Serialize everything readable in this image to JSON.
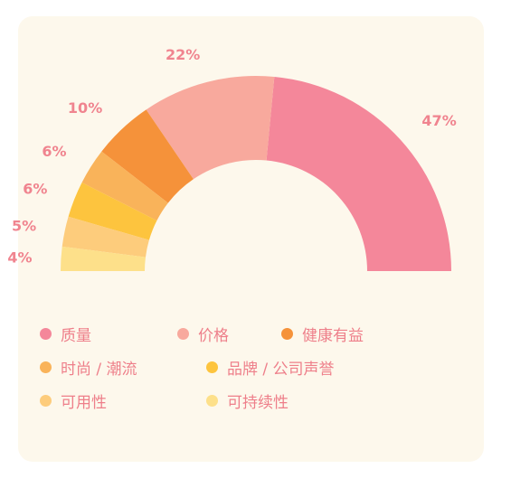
{
  "chart_data": {
    "type": "pie",
    "subtype": "semi-donut",
    "title": "",
    "categories": [
      "质量",
      "价格",
      "健康有益",
      "时尚 / 潮流",
      "品牌 / 公司声誉",
      "可用性",
      "可持续性"
    ],
    "values": [
      47,
      22,
      10,
      6,
      6,
      5,
      4
    ],
    "value_labels": [
      "47%",
      "22%",
      "10%",
      "6%",
      "6%",
      "5%",
      "4%"
    ],
    "colors": [
      "#f4879a",
      "#f8a99d",
      "#f5923a",
      "#f9b35a",
      "#fdc43e",
      "#fdcc7c",
      "#fde08a"
    ],
    "legend_position": "bottom"
  }
}
